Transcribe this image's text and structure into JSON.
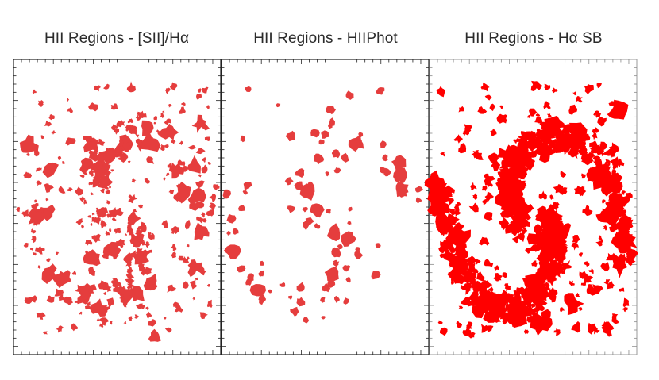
{
  "panels": [
    {
      "id": "sii",
      "title": "HII Regions - [SII]/Hα",
      "style": "scattered-clumps"
    },
    {
      "id": "hiiphot",
      "title": "HII Regions - HIIPhot",
      "style": "discrete-blobs"
    },
    {
      "id": "sb",
      "title": "HII Regions - Hα SB",
      "style": "dense-spiral-arms"
    }
  ],
  "colors": {
    "region_fill": "#e53d3d",
    "region_fill_dense": "#ff0000",
    "frame": "#222222",
    "frame_light": "#9a9a9a"
  }
}
